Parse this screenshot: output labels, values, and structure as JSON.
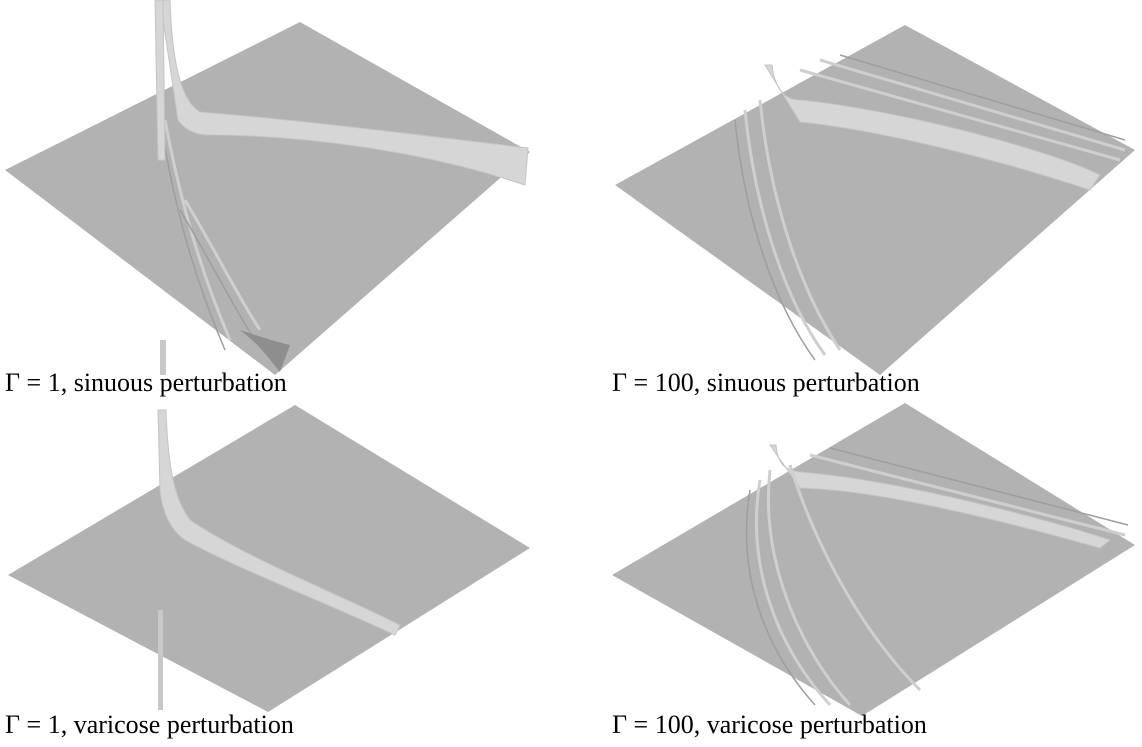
{
  "panels": [
    {
      "caption": "Γ = 1, sinuous perturbation"
    },
    {
      "caption": "Γ = 100, sinuous perturbation"
    },
    {
      "caption": "Γ = 1, varicose perturbation"
    },
    {
      "caption": "Γ = 100, varicose perturbation"
    }
  ]
}
